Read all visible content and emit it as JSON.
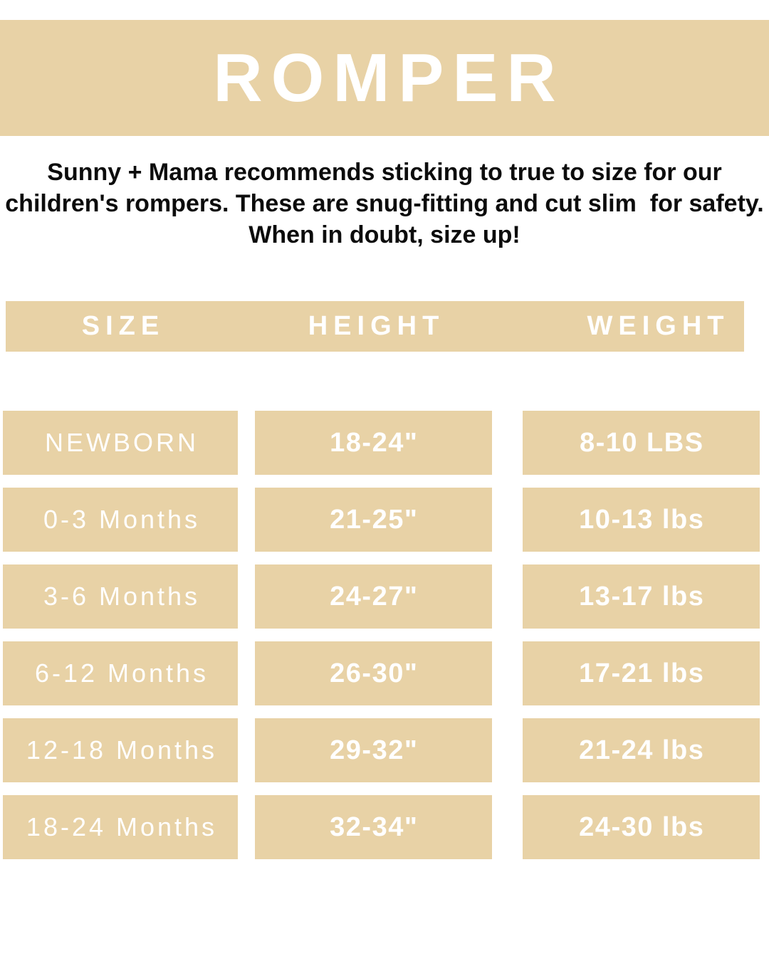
{
  "colors": {
    "tan": "#e8d2a6",
    "page_bg": "#ffffff",
    "text_light": "#ffffff",
    "text_dark": "#0c0c0c"
  },
  "banner": {
    "title": "ROMPER"
  },
  "intro": {
    "line1": "Sunny + Mama recommends sticking to true to size for our",
    "line2": "children's rompers. These are snug-fitting and cut slim  for safety.",
    "line3": "When in doubt, size up!"
  },
  "table": {
    "headers": [
      "SIZE",
      "HEIGHT",
      "WEIGHT"
    ],
    "rows": [
      {
        "size": "NEWBORN",
        "height": "18-24\"",
        "weight": "8-10 LBS"
      },
      {
        "size": "0-3 Months",
        "height": "21-25\"",
        "weight": "10-13 lbs"
      },
      {
        "size": "3-6 Months",
        "height": "24-27\"",
        "weight": "13-17 lbs"
      },
      {
        "size": "6-12 Months",
        "height": "26-30\"",
        "weight": "17-21 lbs"
      },
      {
        "size": "12-18 Months",
        "height": "29-32\"",
        "weight": "21-24 lbs"
      },
      {
        "size": "18-24 Months",
        "height": "32-34\"",
        "weight": "24-30 lbs"
      }
    ]
  }
}
